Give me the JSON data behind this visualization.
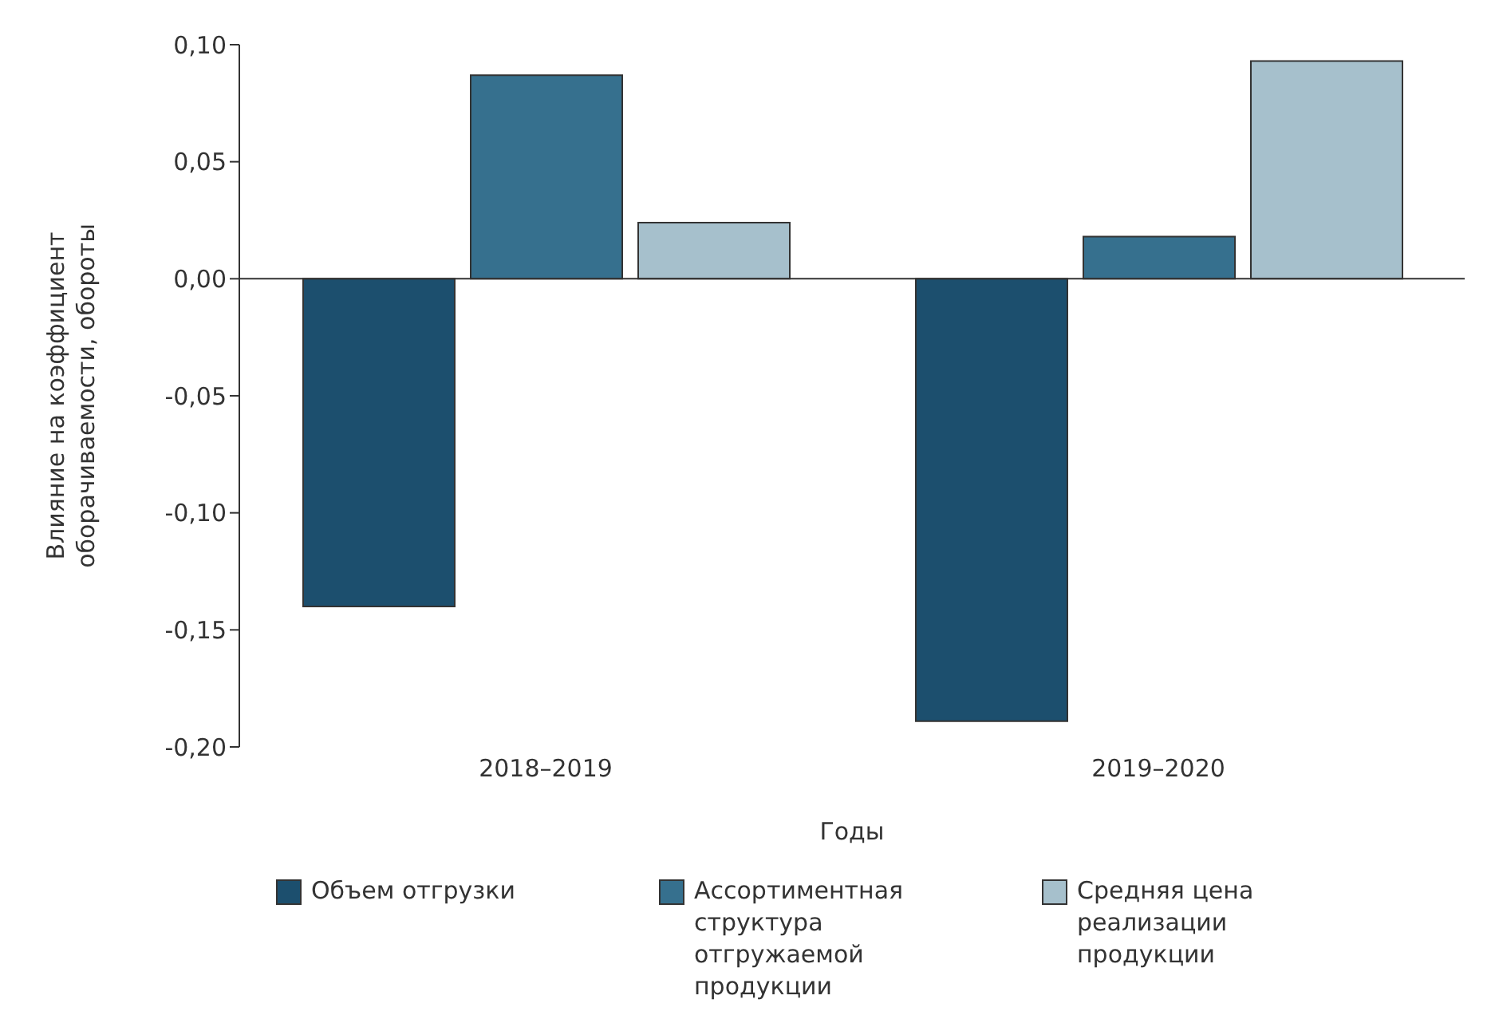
{
  "chart_data": {
    "type": "bar",
    "xlabel": "Годы",
    "ylabel": "Влияние на коэффициент оборачиваемости, обороты",
    "categories": [
      "2018–2019",
      "2019–2020"
    ],
    "series": [
      {
        "name": "Объем отгрузки",
        "color": "#1c4f6e",
        "values": [
          -0.14,
          -0.189
        ]
      },
      {
        "name": "Ассортиментная структура отгружаемой продукции",
        "color": "#36708e",
        "values": [
          0.087,
          0.018
        ]
      },
      {
        "name": "Средняя цена реализации продукции",
        "color": "#a6c0cc",
        "values": [
          0.024,
          0.093
        ]
      }
    ],
    "ylim": [
      -0.2,
      0.1
    ],
    "yticks": [
      {
        "value": -0.2,
        "label": "-0,20"
      },
      {
        "value": -0.15,
        "label": "-0,15"
      },
      {
        "value": -0.1,
        "label": "-0,10"
      },
      {
        "value": -0.05,
        "label": "-0,05"
      },
      {
        "value": 0,
        "label": "0,00"
      },
      {
        "value": 0.05,
        "label": "0,05"
      },
      {
        "value": 0.1,
        "label": "0,10"
      }
    ],
    "legend": "bottom"
  }
}
